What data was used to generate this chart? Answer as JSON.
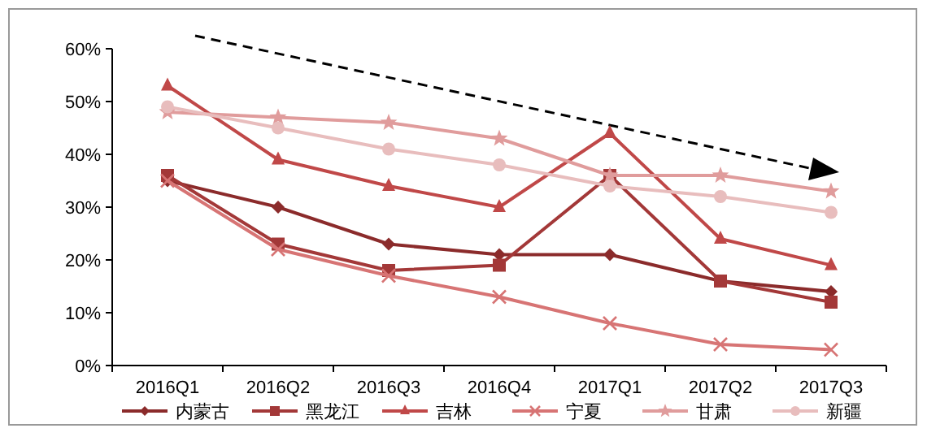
{
  "chart_data": {
    "type": "line",
    "categories": [
      "2016Q1",
      "2016Q2",
      "2016Q3",
      "2016Q4",
      "2017Q1",
      "2017Q2",
      "2017Q3"
    ],
    "series": [
      {
        "name": "内蒙古",
        "color": "#8b2b2b",
        "marker": "diamond",
        "values": [
          35,
          30,
          23,
          21,
          21,
          16,
          14
        ]
      },
      {
        "name": "黑龙江",
        "color": "#a33838",
        "marker": "square",
        "values": [
          36,
          23,
          18,
          19,
          36,
          16,
          12
        ]
      },
      {
        "name": "吉林",
        "color": "#c04848",
        "marker": "triangle",
        "values": [
          53,
          39,
          34,
          30,
          44,
          24,
          19
        ]
      },
      {
        "name": "宁夏",
        "color": "#d77474",
        "marker": "cross",
        "values": [
          35,
          22,
          17,
          13,
          8,
          4,
          3
        ]
      },
      {
        "name": "甘肃",
        "color": "#e09c9c",
        "marker": "star",
        "values": [
          48,
          47,
          46,
          43,
          36,
          36,
          33
        ]
      },
      {
        "name": "新疆",
        "color": "#e8bdbd",
        "marker": "circle",
        "values": [
          49,
          45,
          41,
          38,
          34,
          32,
          29
        ]
      }
    ],
    "ylim": [
      0,
      60
    ],
    "yticks": [
      {
        "value": 0,
        "label": "0%"
      },
      {
        "value": 10,
        "label": "10%"
      },
      {
        "value": 20,
        "label": "20%"
      },
      {
        "value": 30,
        "label": "30%"
      },
      {
        "value": 40,
        "label": "40%"
      },
      {
        "value": 50,
        "label": "50%"
      },
      {
        "value": 60,
        "label": "60%"
      }
    ],
    "grid": false,
    "legend": "bottom",
    "line_style": "solid"
  }
}
